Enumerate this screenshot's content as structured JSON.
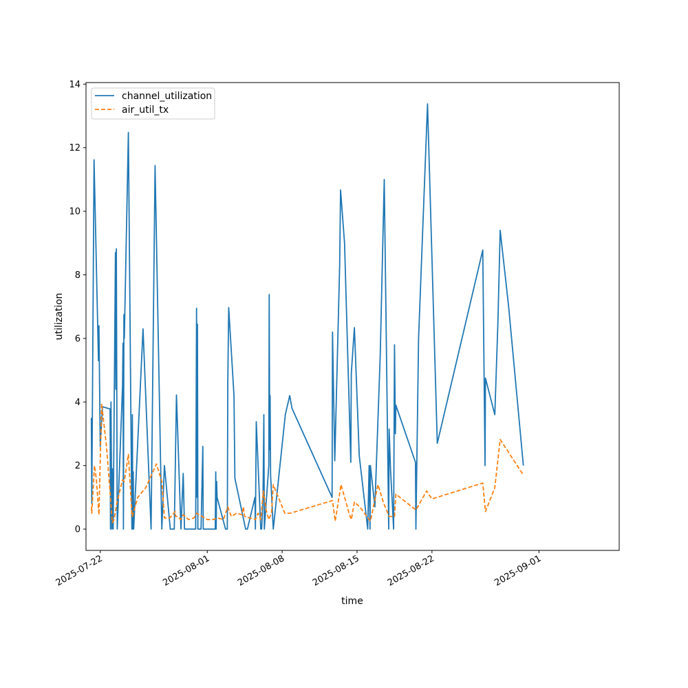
{
  "chart_data": {
    "type": "line",
    "xlabel": "time",
    "ylabel": "utilization",
    "xlim": [
      "2025-07-20T16:00",
      "2025-09-08T12:00"
    ],
    "ylim": [
      -0.67,
      14.05
    ],
    "y_ticks": [
      0,
      2,
      4,
      6,
      8,
      10,
      12,
      14
    ],
    "x_ticks": [
      "2025-07-22",
      "2025-08-01",
      "2025-08-08",
      "2025-08-15",
      "2025-08-22",
      "2025-09-01"
    ],
    "legend": "upper-left",
    "grid": false,
    "series": [
      {
        "name": "channel_utilization",
        "color": "#1f77b4",
        "style": "solid",
        "points": [
          [
            "2025-07-21T04:00",
            3.5
          ],
          [
            "2025-07-21T05:00",
            0.8
          ],
          [
            "2025-07-21T10:00",
            11.62
          ],
          [
            "2025-07-21T20:00",
            5.3
          ],
          [
            "2025-07-21T21:00",
            6.4
          ],
          [
            "2025-07-22T00:00",
            2.6
          ],
          [
            "2025-07-22T05:00",
            3.85
          ],
          [
            "2025-07-22T22:00",
            3.78
          ],
          [
            "2025-07-22T23:00",
            0.0
          ],
          [
            "2025-07-23T00:00",
            4.0
          ],
          [
            "2025-07-23T02:00",
            0.0
          ],
          [
            "2025-07-23T03:00",
            1.9
          ],
          [
            "2025-07-23T05:00",
            0.0
          ],
          [
            "2025-07-23T10:00",
            8.7
          ],
          [
            "2025-07-23T11:00",
            4.4
          ],
          [
            "2025-07-23T12:00",
            8.82
          ],
          [
            "2025-07-23T14:00",
            0.0
          ],
          [
            "2025-07-24T02:00",
            4.5
          ],
          [
            "2025-07-24T03:00",
            5.85
          ],
          [
            "2025-07-24T04:00",
            0.0
          ],
          [
            "2025-07-24T05:00",
            6.75
          ],
          [
            "2025-07-24T06:00",
            6.0
          ],
          [
            "2025-07-24T15:00",
            12.48
          ],
          [
            "2025-07-24T23:00",
            0.0
          ],
          [
            "2025-07-25T00:00",
            3.6
          ],
          [
            "2025-07-25T01:00",
            0.0
          ],
          [
            "2025-07-25T02:00",
            1.8
          ],
          [
            "2025-07-25T03:00",
            0.0
          ],
          [
            "2025-07-26T00:00",
            6.3
          ],
          [
            "2025-07-26T18:00",
            0.0
          ],
          [
            "2025-07-27T03:00",
            11.44
          ],
          [
            "2025-07-27T18:00",
            0.0
          ],
          [
            "2025-07-28T00:00",
            2.0
          ],
          [
            "2025-07-28T13:00",
            0.0
          ],
          [
            "2025-07-28T22:00",
            0.0
          ],
          [
            "2025-07-29T03:00",
            4.22
          ],
          [
            "2025-07-29T13:00",
            0.0
          ],
          [
            "2025-07-29T18:00",
            1.75
          ],
          [
            "2025-07-29T21:00",
            0.0
          ],
          [
            "2025-07-30T22:00",
            0.0
          ],
          [
            "2025-07-31T00:00",
            6.95
          ],
          [
            "2025-07-31T01:00",
            1.0
          ],
          [
            "2025-07-31T02:00",
            6.45
          ],
          [
            "2025-07-31T03:00",
            0.0
          ],
          [
            "2025-07-31T10:00",
            0.0
          ],
          [
            "2025-07-31T14:00",
            2.6
          ],
          [
            "2025-07-31T15:00",
            0.0
          ],
          [
            "2025-08-01T18:00",
            0.0
          ],
          [
            "2025-08-01T19:00",
            1.8
          ],
          [
            "2025-08-01T20:00",
            0.0
          ],
          [
            "2025-08-01T21:00",
            1.5
          ],
          [
            "2025-08-01T22:00",
            1.0
          ],
          [
            "2025-08-02T17:00",
            0.0
          ],
          [
            "2025-08-02T21:00",
            0.0
          ],
          [
            "2025-08-02T22:00",
            4.6
          ],
          [
            "2025-08-03T00:00",
            6.97
          ],
          [
            "2025-08-03T12:00",
            4.2
          ],
          [
            "2025-08-03T14:00",
            1.6
          ],
          [
            "2025-08-04T14:00",
            0.0
          ],
          [
            "2025-08-04T18:00",
            0.0
          ],
          [
            "2025-08-05T11:00",
            1.0
          ],
          [
            "2025-08-05T12:00",
            0.0
          ],
          [
            "2025-08-05T14:00",
            3.38
          ],
          [
            "2025-08-06T00:00",
            0.0
          ],
          [
            "2025-08-06T02:00",
            0.0
          ],
          [
            "2025-08-06T05:00",
            1.0
          ],
          [
            "2025-08-06T07:00",
            3.6
          ],
          [
            "2025-08-06T08:00",
            0.0
          ],
          [
            "2025-08-06T18:00",
            2.0
          ],
          [
            "2025-08-06T19:00",
            7.38
          ],
          [
            "2025-08-06T20:00",
            2.5
          ],
          [
            "2025-08-06T21:00",
            4.2
          ],
          [
            "2025-08-06T22:00",
            1.7
          ],
          [
            "2025-08-07T04:00",
            0.0
          ],
          [
            "2025-08-08T07:00",
            3.6
          ],
          [
            "2025-08-08T17:00",
            4.2
          ],
          [
            "2025-08-08T22:00",
            3.8
          ],
          [
            "2025-08-12T16:00",
            1.0
          ],
          [
            "2025-08-12T17:00",
            6.2
          ],
          [
            "2025-08-12T22:00",
            2.15
          ],
          [
            "2025-08-13T09:00",
            8.3
          ],
          [
            "2025-08-13T11:00",
            10.67
          ],
          [
            "2025-08-13T20:00",
            9.0
          ],
          [
            "2025-08-14T10:00",
            2.1
          ],
          [
            "2025-08-14T11:00",
            4.9
          ],
          [
            "2025-08-14T18:00",
            6.34
          ],
          [
            "2025-08-15T05:00",
            2.3
          ],
          [
            "2025-08-16T00:00",
            0.0
          ],
          [
            "2025-08-16T03:00",
            2.0
          ],
          [
            "2025-08-16T05:00",
            0.0
          ],
          [
            "2025-08-16T06:00",
            2.0
          ],
          [
            "2025-08-16T16:00",
            0.7
          ],
          [
            "2025-08-17T04:00",
            5.5
          ],
          [
            "2025-08-17T13:00",
            11.0
          ],
          [
            "2025-08-17T23:00",
            0.0
          ],
          [
            "2025-08-18T00:00",
            3.15
          ],
          [
            "2025-08-18T03:00",
            1.9
          ],
          [
            "2025-08-18T10:00",
            0.0
          ],
          [
            "2025-08-18T12:00",
            5.8
          ],
          [
            "2025-08-18T14:00",
            3.0
          ],
          [
            "2025-08-18T15:00",
            3.9
          ],
          [
            "2025-08-20T11:00",
            2.1
          ],
          [
            "2025-08-20T12:00",
            0.0
          ],
          [
            "2025-08-20T18:00",
            6.0
          ],
          [
            "2025-08-21T14:00",
            13.38
          ],
          [
            "2025-08-22T12:00",
            2.7
          ],
          [
            "2025-08-26T18:00",
            8.78
          ],
          [
            "2025-08-26T23:00",
            2.0
          ],
          [
            "2025-08-27T00:00",
            4.75
          ],
          [
            "2025-08-27T21:00",
            3.6
          ],
          [
            "2025-08-28T04:00",
            6.5
          ],
          [
            "2025-08-28T09:00",
            9.4
          ],
          [
            "2025-08-29T04:00",
            7.0
          ],
          [
            "2025-08-30T13:00",
            2.0
          ]
        ]
      },
      {
        "name": "air_util_tx",
        "color": "#ff7f0e",
        "style": "dashed",
        "points": [
          [
            "2025-07-21T04:00",
            0.7
          ],
          [
            "2025-07-21T05:00",
            0.5
          ],
          [
            "2025-07-21T11:00",
            2.0
          ],
          [
            "2025-07-21T15:00",
            1.6
          ],
          [
            "2025-07-21T21:00",
            0.45
          ],
          [
            "2025-07-22T03:00",
            3.95
          ],
          [
            "2025-07-22T14:00",
            2.6
          ],
          [
            "2025-07-22T23:00",
            1.0
          ],
          [
            "2025-07-23T03:00",
            0.2
          ],
          [
            "2025-07-23T07:00",
            0.3
          ],
          [
            "2025-07-23T13:00",
            0.8
          ],
          [
            "2025-07-24T02:00",
            1.55
          ],
          [
            "2025-07-24T06:00",
            1.5
          ],
          [
            "2025-07-24T15:00",
            2.35
          ],
          [
            "2025-07-24T23:00",
            0.5
          ],
          [
            "2025-07-25T00:00",
            0.4
          ],
          [
            "2025-07-25T06:00",
            0.7
          ],
          [
            "2025-07-25T12:00",
            1.0
          ],
          [
            "2025-07-26T00:00",
            1.2
          ],
          [
            "2025-07-26T06:00",
            1.3
          ],
          [
            "2025-07-27T06:00",
            2.05
          ],
          [
            "2025-07-27T18:00",
            1.5
          ],
          [
            "2025-07-28T00:00",
            0.35
          ],
          [
            "2025-07-28T12:00",
            0.35
          ],
          [
            "2025-07-29T00:00",
            0.55
          ],
          [
            "2025-07-29T01:00",
            0.4
          ],
          [
            "2025-07-29T06:00",
            0.4
          ],
          [
            "2025-07-29T12:00",
            0.3
          ],
          [
            "2025-07-29T18:00",
            0.45
          ],
          [
            "2025-07-30T06:00",
            0.3
          ],
          [
            "2025-07-30T18:00",
            0.35
          ],
          [
            "2025-07-31T00:00",
            0.5
          ],
          [
            "2025-07-31T12:00",
            0.4
          ],
          [
            "2025-08-01T00:00",
            0.3
          ],
          [
            "2025-08-01T12:00",
            0.3
          ],
          [
            "2025-08-02T00:00",
            0.35
          ],
          [
            "2025-08-02T12:00",
            0.3
          ],
          [
            "2025-08-02T22:00",
            0.7
          ],
          [
            "2025-08-03T06:00",
            0.4
          ],
          [
            "2025-08-03T18:00",
            0.5
          ],
          [
            "2025-08-04T06:00",
            0.45
          ],
          [
            "2025-08-04T09:00",
            0.7
          ],
          [
            "2025-08-04T12:00",
            0.4
          ],
          [
            "2025-08-05T12:00",
            0.3
          ],
          [
            "2025-08-05T18:00",
            0.5
          ],
          [
            "2025-08-06T00:00",
            0.3
          ],
          [
            "2025-08-06T06:00",
            1.2
          ],
          [
            "2025-08-06T12:00",
            0.6
          ],
          [
            "2025-08-06T18:00",
            0.3
          ],
          [
            "2025-08-07T00:00",
            0.5
          ],
          [
            "2025-08-07T04:00",
            1.4
          ],
          [
            "2025-08-08T06:00",
            0.5
          ],
          [
            "2025-08-08T18:00",
            0.5
          ],
          [
            "2025-08-12T17:00",
            0.9
          ],
          [
            "2025-08-12T23:00",
            0.25
          ],
          [
            "2025-08-13T12:00",
            1.4
          ],
          [
            "2025-08-14T06:00",
            0.5
          ],
          [
            "2025-08-14T11:00",
            0.3
          ],
          [
            "2025-08-14T18:00",
            0.85
          ],
          [
            "2025-08-15T06:00",
            0.7
          ],
          [
            "2025-08-16T06:00",
            0.25
          ],
          [
            "2025-08-16T23:00",
            1.4
          ],
          [
            "2025-08-17T12:00",
            0.8
          ],
          [
            "2025-08-18T00:00",
            0.4
          ],
          [
            "2025-08-18T12:00",
            0.4
          ],
          [
            "2025-08-18T15:00",
            1.1
          ],
          [
            "2025-08-20T12:00",
            0.6
          ],
          [
            "2025-08-21T12:00",
            1.2
          ],
          [
            "2025-08-22T00:00",
            0.95
          ],
          [
            "2025-08-26T18:00",
            1.45
          ],
          [
            "2025-08-27T00:00",
            0.55
          ],
          [
            "2025-08-27T21:00",
            1.3
          ],
          [
            "2025-08-28T09:00",
            2.82
          ],
          [
            "2025-08-30T13:00",
            1.7
          ]
        ]
      }
    ]
  }
}
